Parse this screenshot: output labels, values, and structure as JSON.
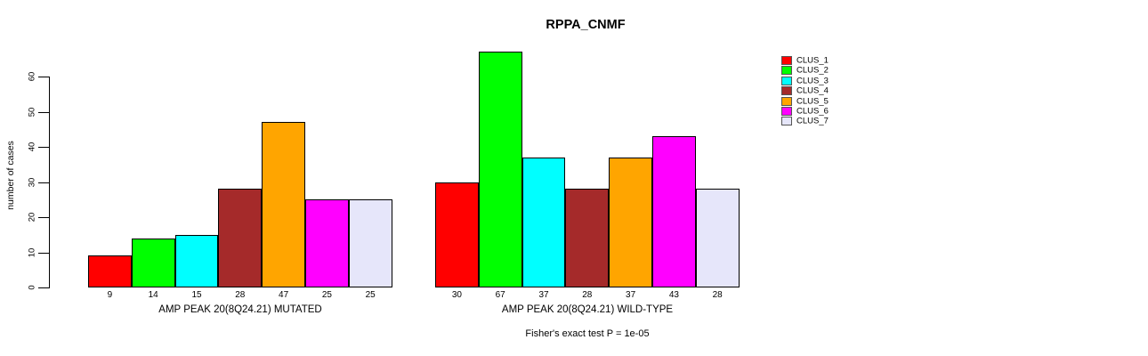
{
  "chart_data": {
    "type": "bar",
    "title": "RPPA_CNMF",
    "ylabel": "number of cases",
    "xlabel": "",
    "ylim": [
      0,
      67
    ],
    "yticks": [
      0,
      10,
      20,
      30,
      40,
      50,
      60
    ],
    "grid": false,
    "legend_position": "right",
    "categories": [
      "CLUS_1",
      "CLUS_2",
      "CLUS_3",
      "CLUS_4",
      "CLUS_5",
      "CLUS_6",
      "CLUS_7"
    ],
    "colors": [
      "#ff0000",
      "#00ff00",
      "#00ffff",
      "#a52a2a",
      "#ffa500",
      "#ff00ff",
      "#e6e6fa"
    ],
    "groups": [
      {
        "label": "AMP PEAK 20(8Q24.21) MUTATED",
        "values": [
          9,
          14,
          15,
          28,
          47,
          25,
          25
        ]
      },
      {
        "label": "AMP PEAK 20(8Q24.21) WILD-TYPE",
        "values": [
          30,
          67,
          37,
          28,
          37,
          43,
          28
        ]
      }
    ],
    "series": [
      {
        "name": "CLUS_1",
        "values": [
          9,
          30
        ]
      },
      {
        "name": "CLUS_2",
        "values": [
          14,
          67
        ]
      },
      {
        "name": "CLUS_3",
        "values": [
          15,
          37
        ]
      },
      {
        "name": "CLUS_4",
        "values": [
          28,
          28
        ]
      },
      {
        "name": "CLUS_5",
        "values": [
          47,
          37
        ]
      },
      {
        "name": "CLUS_6",
        "values": [
          25,
          43
        ]
      },
      {
        "name": "CLUS_7",
        "values": [
          25,
          28
        ]
      }
    ],
    "annotation": "Fisher's exact test P = 1e-05"
  }
}
